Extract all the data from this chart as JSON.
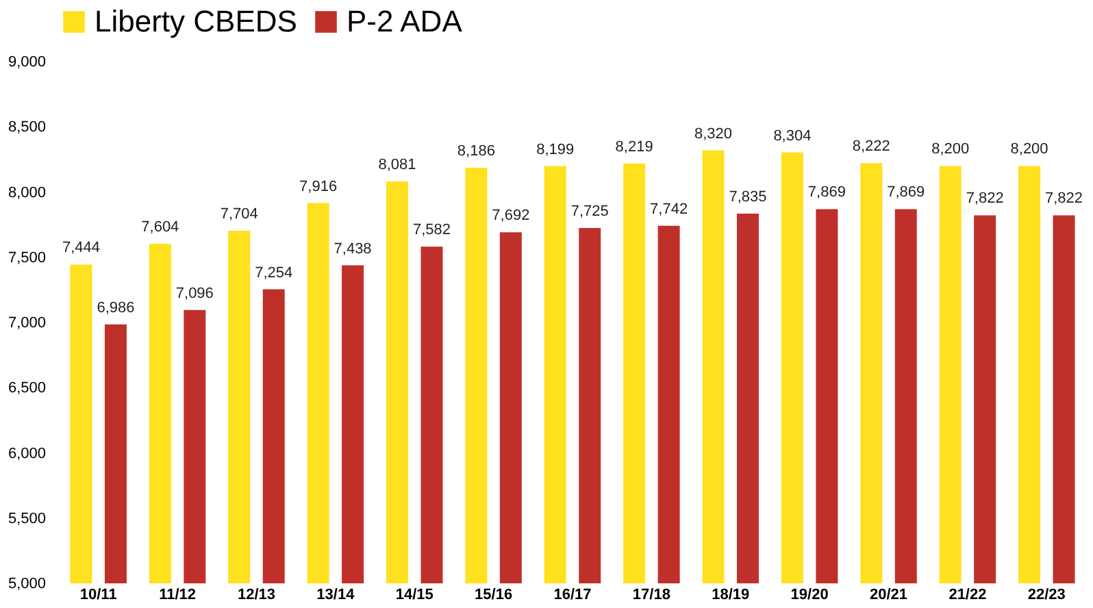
{
  "chart_data": {
    "type": "bar",
    "categories": [
      "10/11",
      "11/12",
      "12/13",
      "13/14",
      "14/15",
      "15/16",
      "16/17",
      "17/18",
      "18/19",
      "19/20",
      "20/21",
      "21/22",
      "22/23"
    ],
    "series": [
      {
        "name": "Liberty CBEDS",
        "color": "#ffe11f",
        "values": [
          7444,
          7604,
          7704,
          7916,
          8081,
          8186,
          8199,
          8219,
          8320,
          8304,
          8222,
          8200,
          8200
        ],
        "value_labels": [
          "7,444",
          "7,604",
          "7,704",
          "7,916",
          "8,081",
          "8,186",
          "8,199",
          "8,219",
          "8,320",
          "8,304",
          "8,222",
          "8,200",
          "8,200"
        ]
      },
      {
        "name": "P-2 ADA",
        "color": "#c0302a",
        "values": [
          6986,
          7096,
          7254,
          7438,
          7582,
          7692,
          7725,
          7742,
          7835,
          7869,
          7869,
          7822,
          7822
        ],
        "value_labels": [
          "6,986",
          "7,096",
          "7,254",
          "7,438",
          "7,582",
          "7,692",
          "7,725",
          "7,742",
          "7,835",
          "7,869",
          "7,869",
          "7,822",
          "7,822"
        ]
      }
    ],
    "ylim": [
      5000,
      9000
    ],
    "yticks": [
      {
        "value": 5000,
        "label": "5,000"
      },
      {
        "value": 5500,
        "label": "5,500"
      },
      {
        "value": 6000,
        "label": "6,000"
      },
      {
        "value": 6500,
        "label": "6,500"
      },
      {
        "value": 7000,
        "label": "7,000"
      },
      {
        "value": 7500,
        "label": "7,500"
      },
      {
        "value": 8000,
        "label": "8,000"
      },
      {
        "value": 8500,
        "label": "8,500"
      },
      {
        "value": 9000,
        "label": "9,000"
      }
    ],
    "grid": false,
    "legend": "top"
  }
}
